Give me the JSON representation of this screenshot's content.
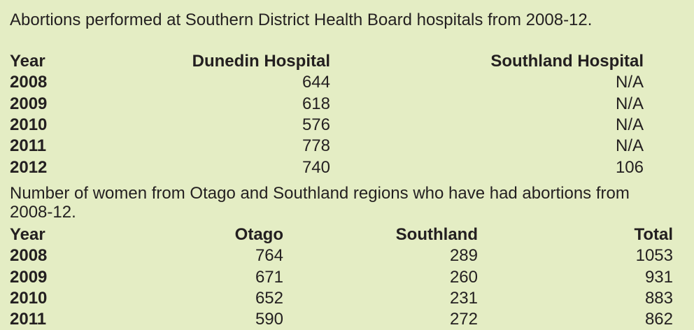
{
  "table1": {
    "title": "Abortions performed at Southern District Health Board hospitals from 2008-12.",
    "columns": [
      "Year",
      "Dunedin Hospital",
      "Southland Hospital"
    ],
    "rows": [
      [
        "2008",
        644,
        "N/A"
      ],
      [
        "2009",
        618,
        "N/A"
      ],
      [
        "2010",
        576,
        "N/A"
      ],
      [
        "2011",
        778,
        "N/A"
      ],
      [
        "2012",
        740,
        106
      ]
    ]
  },
  "table2": {
    "title": "Number of women from Otago and Southland regions who have had abortions from 2008-12.",
    "columns": [
      "Year",
      "Otago",
      "Southland",
      "Total"
    ],
    "rows": [
      [
        "2008",
        764,
        289,
        1053
      ],
      [
        "2009",
        671,
        260,
        931
      ],
      [
        "2010",
        652,
        231,
        883
      ],
      [
        "2011",
        590,
        272,
        862
      ]
    ]
  }
}
